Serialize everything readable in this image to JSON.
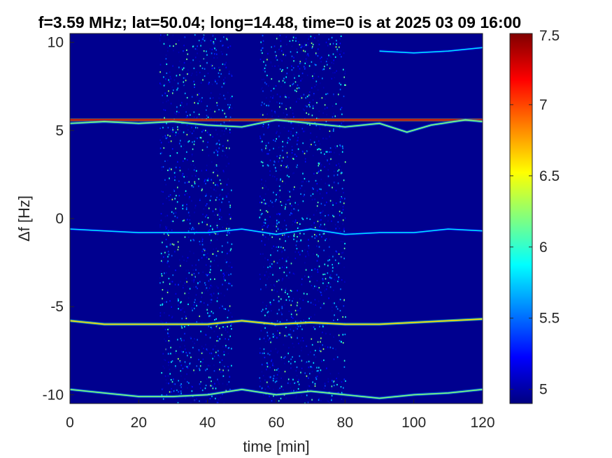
{
  "chart_data": {
    "type": "heatmap",
    "title": "f=3.59 MHz;  lat=50.04; long=14.48, time=0 is at 2025 03 09 16:00",
    "xlabel": "time [min]",
    "ylabel": "Δf [Hz]",
    "xlim": [
      0,
      120
    ],
    "ylim": [
      -10.5,
      10.5
    ],
    "xticks": [
      0,
      20,
      40,
      60,
      80,
      100,
      120
    ],
    "xtick_labels": [
      "0",
      "20",
      "40",
      "60",
      "80",
      "100",
      "120"
    ],
    "yticks": [
      10,
      5,
      0,
      -5,
      -10
    ],
    "ytick_labels": [
      "10",
      "5",
      "0",
      "-5",
      "-10"
    ],
    "colorbar": {
      "colormap": "jet",
      "range": [
        4.9,
        7.5
      ],
      "ticks": [
        7.5,
        7,
        6.5,
        6,
        5.5,
        5
      ],
      "tick_labels": [
        "7.5",
        "7",
        "6.5",
        "6",
        "5.5",
        "5"
      ]
    },
    "grid": false,
    "noise_bands_min": [
      [
        26,
        47
      ],
      [
        55,
        80
      ]
    ],
    "traces": [
      {
        "level": 7.3,
        "points": [
          [
            0,
            5.6
          ],
          [
            120,
            5.6
          ]
        ]
      },
      {
        "level": 6.2,
        "points": [
          [
            0,
            5.4
          ],
          [
            10,
            5.5
          ],
          [
            20,
            5.4
          ],
          [
            30,
            5.5
          ],
          [
            40,
            5.3
          ],
          [
            50,
            5.2
          ],
          [
            60,
            5.6
          ],
          [
            70,
            5.4
          ],
          [
            80,
            5.2
          ],
          [
            90,
            5.4
          ],
          [
            98,
            4.9
          ],
          [
            105,
            5.3
          ],
          [
            115,
            5.6
          ],
          [
            120,
            5.5
          ]
        ]
      },
      {
        "level": 5.8,
        "points": [
          [
            90,
            9.5
          ],
          [
            100,
            9.4
          ],
          [
            110,
            9.5
          ],
          [
            120,
            9.7
          ]
        ]
      },
      {
        "level": 5.8,
        "points": [
          [
            0,
            -0.6
          ],
          [
            10,
            -0.7
          ],
          [
            20,
            -0.8
          ],
          [
            30,
            -0.8
          ],
          [
            40,
            -0.8
          ],
          [
            50,
            -0.6
          ],
          [
            60,
            -0.9
          ],
          [
            70,
            -0.6
          ],
          [
            80,
            -0.9
          ],
          [
            90,
            -0.8
          ],
          [
            100,
            -0.8
          ],
          [
            110,
            -0.6
          ],
          [
            120,
            -0.7
          ]
        ]
      },
      {
        "level": 6.6,
        "points": [
          [
            0,
            -5.8
          ],
          [
            10,
            -6.0
          ],
          [
            20,
            -6.0
          ],
          [
            30,
            -6.0
          ],
          [
            40,
            -6.0
          ],
          [
            50,
            -5.8
          ],
          [
            60,
            -6.0
          ],
          [
            70,
            -5.9
          ],
          [
            80,
            -6.0
          ],
          [
            90,
            -6.0
          ],
          [
            100,
            -5.9
          ],
          [
            110,
            -5.8
          ],
          [
            120,
            -5.7
          ]
        ]
      },
      {
        "level": 6.2,
        "points": [
          [
            0,
            -9.7
          ],
          [
            10,
            -9.9
          ],
          [
            20,
            -10.1
          ],
          [
            30,
            -10.1
          ],
          [
            40,
            -10.0
          ],
          [
            50,
            -9.7
          ],
          [
            60,
            -10.0
          ],
          [
            70,
            -9.8
          ],
          [
            80,
            -10.0
          ],
          [
            90,
            -10.2
          ],
          [
            100,
            -10.0
          ],
          [
            110,
            -9.9
          ],
          [
            120,
            -9.7
          ]
        ]
      }
    ]
  }
}
